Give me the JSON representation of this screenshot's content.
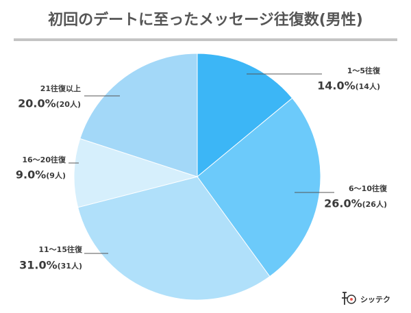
{
  "chart_data": {
    "type": "pie",
    "title": "初回のデートに至ったメッセージ往復数(男性)",
    "categories": [
      "1〜5往復",
      "6〜10往復",
      "11〜15往復",
      "16〜20往復",
      "21往復以上"
    ],
    "values": [
      14,
      26,
      31,
      9,
      20
    ],
    "value_labels": [
      "14.0%",
      "26.0%",
      "31.0%",
      "9.0%",
      "20.0%"
    ],
    "count_labels": [
      "(14人)",
      "(26人)",
      "(31人)",
      "(9人)",
      "(20人)"
    ],
    "colors": [
      "#3cb6f6",
      "#6ccafa",
      "#b0e0fa",
      "#d6effc",
      "#a3d8f8"
    ]
  },
  "logo": {
    "text": "シッテク"
  }
}
